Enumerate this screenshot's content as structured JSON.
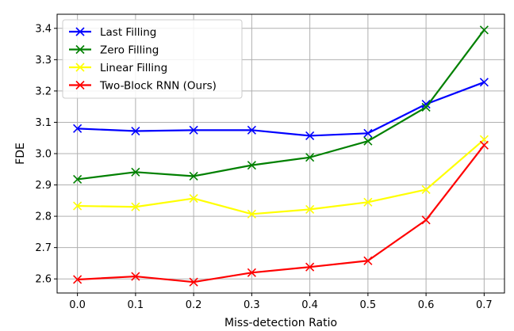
{
  "chart_data": {
    "type": "line",
    "title": "",
    "xlabel": "Miss-detection Ratio",
    "ylabel": "FDE",
    "x": [
      0.0,
      0.1,
      0.2,
      0.3,
      0.4,
      0.5,
      0.6,
      0.7
    ],
    "x_tick_labels": [
      "0.0",
      "0.1",
      "0.2",
      "0.3",
      "0.4",
      "0.5",
      "0.6",
      "0.7"
    ],
    "xlim": [
      -0.035,
      0.735
    ],
    "ylim": [
      2.555,
      3.445
    ],
    "y_ticks": [
      2.6,
      2.7,
      2.8,
      2.9,
      3.0,
      3.1,
      3.2,
      3.3,
      3.4
    ],
    "y_tick_labels": [
      "2.6",
      "2.7",
      "2.8",
      "2.9",
      "3.0",
      "3.1",
      "3.2",
      "3.3",
      "3.4"
    ],
    "grid": true,
    "legend_position": "top-left",
    "marker": "x",
    "series": [
      {
        "name": "Last Filling",
        "color": "#0000ff",
        "values": [
          3.08,
          3.072,
          3.075,
          3.075,
          3.057,
          3.065,
          3.158,
          3.228
        ]
      },
      {
        "name": "Zero Filling",
        "color": "#008000",
        "values": [
          2.918,
          2.941,
          2.928,
          2.963,
          2.988,
          3.04,
          3.148,
          3.395
        ]
      },
      {
        "name": "Linear Filling",
        "color": "#ffff00",
        "values": [
          2.833,
          2.83,
          2.857,
          2.807,
          2.822,
          2.845,
          2.885,
          3.045
        ]
      },
      {
        "name": "Two-Block RNN (Ours)",
        "color": "#ff0000",
        "values": [
          2.598,
          2.608,
          2.59,
          2.62,
          2.638,
          2.658,
          2.788,
          3.027
        ]
      }
    ]
  }
}
